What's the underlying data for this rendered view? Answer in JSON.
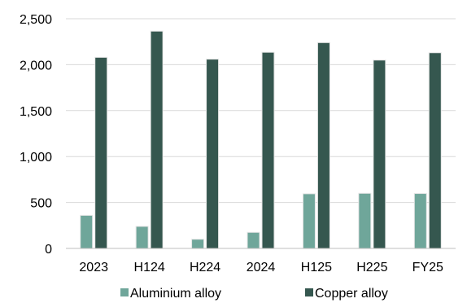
{
  "chart_data": {
    "type": "bar",
    "categories": [
      "2023",
      "H124",
      "H224",
      "2024",
      "H125",
      "H225",
      "FY25"
    ],
    "series": [
      {
        "name": "Aluminium alloy",
        "color": "#6fa69a",
        "values": [
          360,
          240,
          100,
          175,
          595,
          600,
          598
        ]
      },
      {
        "name": "Copper alloy",
        "color": "#35574f",
        "values": [
          2080,
          2365,
          2060,
          2135,
          2240,
          2050,
          2130
        ]
      }
    ],
    "ylim": [
      0,
      2500
    ],
    "yticks": [
      0,
      500,
      1000,
      1500,
      2000,
      2500
    ],
    "ytick_labels": [
      "0",
      "500",
      "1,000",
      "1,500",
      "2,000",
      "2,500"
    ],
    "xlabel": "",
    "ylabel": "",
    "title": "",
    "grid": "horizontal",
    "legend": "bottom"
  }
}
